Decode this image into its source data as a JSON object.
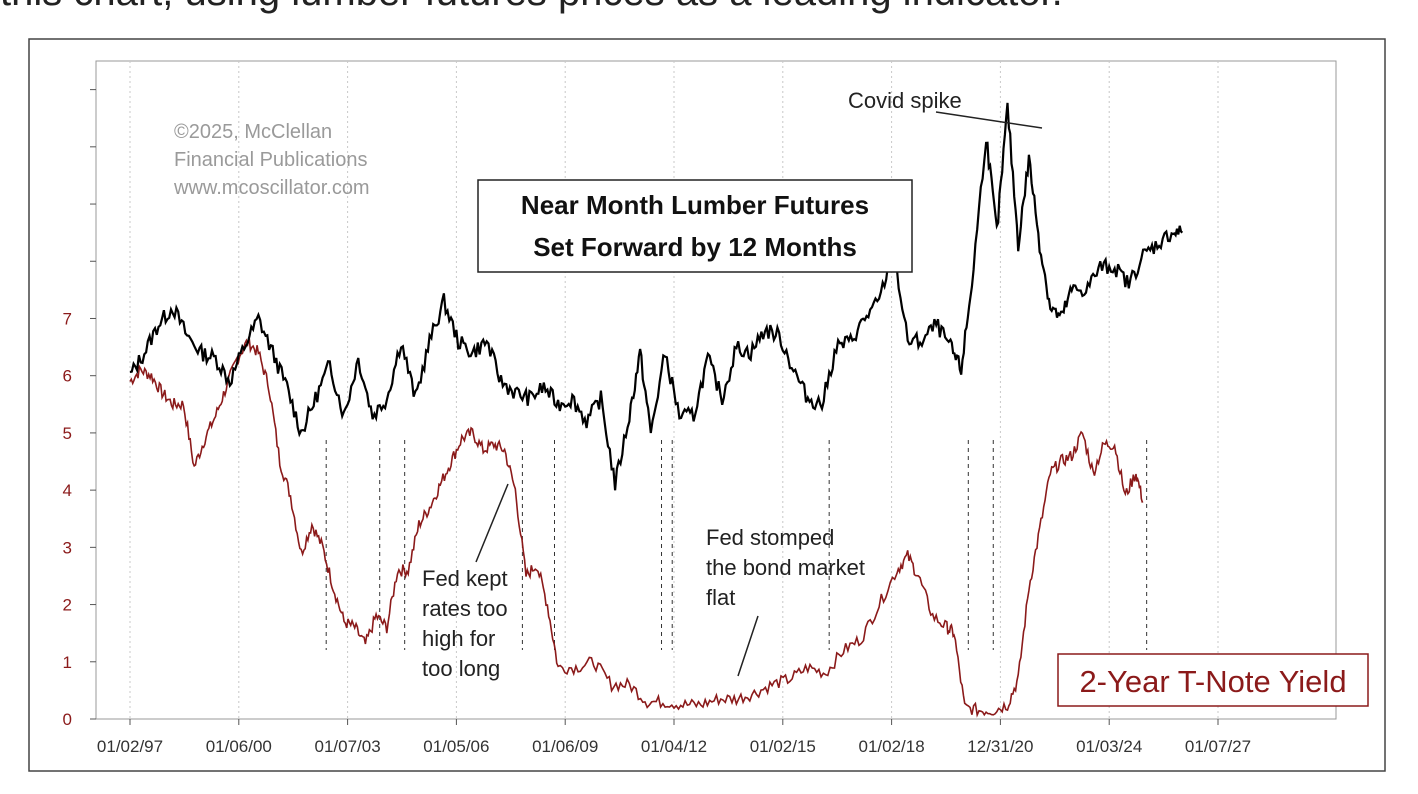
{
  "caption": "this chart, using lumber futures prices as a leading indicator.",
  "watermark": [
    "©2025, McClellan",
    "Financial Publications",
    "www.mcoscillator.com"
  ],
  "title_lines": [
    "Near Month Lumber Futures",
    "Set Forward by 12 Months"
  ],
  "annotations": {
    "covid": "Covid spike",
    "fed_kept": [
      "Fed kept",
      "rates too",
      "high for",
      "too long"
    ],
    "fed_stomped": [
      "Fed stomped",
      "the bond market",
      "flat"
    ]
  },
  "colors": {
    "lumber": "#000000",
    "yield": "#8b1a1a",
    "grid": "#c8c8c8",
    "background": "#ffffff"
  },
  "chart_data": {
    "type": "line",
    "legend": "2-Year T-Note Yield",
    "x_ticks": [
      "01/02/97",
      "01/06/00",
      "01/07/03",
      "01/05/06",
      "01/06/09",
      "01/04/12",
      "01/02/15",
      "01/02/18",
      "12/31/20",
      "01/03/24",
      "01/07/27"
    ],
    "y_ticks": [
      0,
      1,
      2,
      3,
      4,
      5,
      6,
      7
    ],
    "ylim": [
      0,
      11.5
    ],
    "xlim": [
      1997.0,
      2027.5
    ],
    "grid": true,
    "legend_position": "bottom-right",
    "series": [
      {
        "name": "2-Year T-Note Yield",
        "x": [
          1997.0,
          1997.3,
          1997.6,
          1997.9,
          1998.2,
          1998.5,
          1998.8,
          1999.1,
          1999.4,
          1999.7,
          2000.0,
          2000.3,
          2000.6,
          2000.9,
          2001.2,
          2001.5,
          2001.8,
          2002.1,
          2002.4,
          2002.7,
          2003.0,
          2003.3,
          2003.6,
          2003.9,
          2004.2,
          2004.5,
          2004.8,
          2005.1,
          2005.4,
          2005.7,
          2006.0,
          2006.3,
          2006.6,
          2006.9,
          2007.2,
          2007.5,
          2007.8,
          2008.1,
          2008.4,
          2008.7,
          2009.0,
          2009.5,
          2010.0,
          2010.5,
          2011.0,
          2011.5,
          2012.0,
          2012.5,
          2013.0,
          2013.5,
          2014.0,
          2014.5,
          2015.0,
          2015.5,
          2016.0,
          2016.5,
          2017.0,
          2017.5,
          2018.0,
          2018.5,
          2018.8,
          2019.1,
          2019.5,
          2019.9,
          2020.1,
          2020.4,
          2020.8,
          2021.2,
          2021.6,
          2021.9,
          2022.2,
          2022.5,
          2022.8,
          2023.1,
          2023.4,
          2023.7,
          2024.0,
          2024.3,
          2024.6,
          2024.9,
          2025.2,
          2025.4
        ],
        "values": [
          5.9,
          6.1,
          6.0,
          5.7,
          5.5,
          5.5,
          4.4,
          4.9,
          5.3,
          5.8,
          6.3,
          6.6,
          6.4,
          5.8,
          4.5,
          3.9,
          2.9,
          3.4,
          3.0,
          2.3,
          1.7,
          1.6,
          1.3,
          1.8,
          1.6,
          2.6,
          2.6,
          3.4,
          3.7,
          4.1,
          4.5,
          4.9,
          5.0,
          4.7,
          4.8,
          4.7,
          4.0,
          2.5,
          2.7,
          2.0,
          0.9,
          0.9,
          1.0,
          0.6,
          0.6,
          0.3,
          0.3,
          0.25,
          0.25,
          0.35,
          0.35,
          0.45,
          0.6,
          0.7,
          0.9,
          0.8,
          1.2,
          1.4,
          2.0,
          2.6,
          2.85,
          2.5,
          1.8,
          1.6,
          1.5,
          0.2,
          0.15,
          0.15,
          0.25,
          0.7,
          2.3,
          3.3,
          4.3,
          4.5,
          4.6,
          5.0,
          4.3,
          4.8,
          4.8,
          3.9,
          4.3,
          3.8
        ]
      },
      {
        "name": "Near Month Lumber Futures",
        "x": [
          1997.0,
          1997.4,
          1997.8,
          1998.2,
          1998.6,
          1999.0,
          1999.4,
          1999.8,
          2000.2,
          2000.6,
          2001.0,
          2001.4,
          2001.8,
          2002.2,
          2002.6,
          2003.0,
          2003.4,
          2003.8,
          2004.2,
          2004.6,
          2005.0,
          2005.4,
          2005.8,
          2006.2,
          2006.6,
          2007.0,
          2007.4,
          2007.8,
          2008.2,
          2008.6,
          2009.0,
          2009.4,
          2009.8,
          2010.2,
          2010.6,
          2011.0,
          2011.3,
          2011.6,
          2012.0,
          2012.4,
          2012.8,
          2013.2,
          2013.6,
          2014.0,
          2014.4,
          2014.8,
          2015.2,
          2015.6,
          2016.0,
          2016.4,
          2016.8,
          2017.2,
          2017.6,
          2018.0,
          2018.4,
          2018.8,
          2019.2,
          2019.6,
          2020.0,
          2020.3,
          2020.6,
          2021.0,
          2021.3,
          2021.6,
          2021.9,
          2022.2,
          2022.5,
          2022.8,
          2023.1,
          2023.4,
          2023.8,
          2024.2,
          2024.6,
          2025.0,
          2025.4,
          2025.8,
          2026.2,
          2026.5
        ],
        "values": [
          6.0,
          6.4,
          6.9,
          7.2,
          6.7,
          6.4,
          6.3,
          5.9,
          6.5,
          7.0,
          6.4,
          5.8,
          5.0,
          5.6,
          6.2,
          5.3,
          6.3,
          5.3,
          5.6,
          6.6,
          5.6,
          6.6,
          7.3,
          6.6,
          6.4,
          6.6,
          5.9,
          5.7,
          5.6,
          5.8,
          5.5,
          5.6,
          5.2,
          5.6,
          4.1,
          5.3,
          6.4,
          5.0,
          6.4,
          5.3,
          5.3,
          6.3,
          5.6,
          6.5,
          6.4,
          6.8,
          6.7,
          6.1,
          5.6,
          5.5,
          6.5,
          6.6,
          7.0,
          7.3,
          8.2,
          6.6,
          6.6,
          6.9,
          6.5,
          6.1,
          7.6,
          10.2,
          8.5,
          10.7,
          8.3,
          9.8,
          8.3,
          7.2,
          7.0,
          7.5,
          7.5,
          7.9,
          7.9,
          7.6,
          8.1,
          8.3,
          8.5,
          8.5
        ]
      }
    ]
  }
}
